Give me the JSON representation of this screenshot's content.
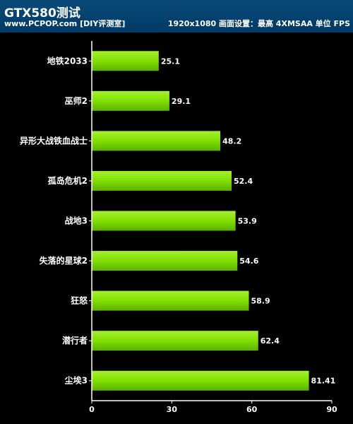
{
  "header": {
    "title": "GTX580测试",
    "source": "www.PCPOP.com [DIY评测室]",
    "settings": "1920x1080  画面设置：最高 4XMSAA  单位 FPS"
  },
  "colors": {
    "background": "#000000",
    "header": "#003a66",
    "bar": "#80e000",
    "text": "#ffffff"
  },
  "chart_data": {
    "type": "bar",
    "orientation": "horizontal",
    "title": "GTX580测试",
    "categories": [
      "地铁2033",
      "巫师2",
      "异形大战铁血战士",
      "孤岛危机2",
      "战地3",
      "失落的星球2",
      "狂怒",
      "潜行者",
      "尘埃3"
    ],
    "values": [
      25.1,
      29.1,
      48.2,
      52.4,
      53.9,
      54.6,
      58.9,
      62.4,
      81.41
    ],
    "value_labels": [
      "25.1",
      "29.1",
      "48.2",
      "52.4",
      "53.9",
      "54.6",
      "58.9",
      "62.4",
      "81.41"
    ],
    "xlim": [
      0,
      90
    ],
    "xticks": [
      "0",
      "30",
      "60",
      "90"
    ],
    "xlabel": "",
    "ylabel": "",
    "grid": false,
    "legend": "none"
  }
}
